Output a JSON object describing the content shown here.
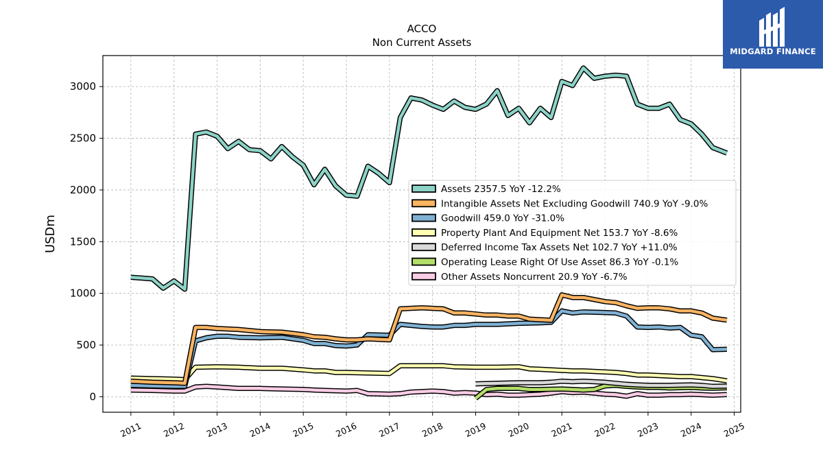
{
  "brand": {
    "name": "MIDGARD FINANCE",
    "color": "#2d5bab"
  },
  "chart_data": {
    "type": "line",
    "title": "ACCO",
    "subtitle": "Non Current  Assets",
    "ylabel": "USDm",
    "xlabel": "",
    "ylim": [
      -150,
      3300
    ],
    "xlim": [
      2010.35,
      2025.15
    ],
    "yticks": [
      0,
      500,
      1000,
      1500,
      2000,
      2500,
      3000
    ],
    "xticks": [
      "2011",
      "2012",
      "2013",
      "2014",
      "2015",
      "2016",
      "2017",
      "2018",
      "2019",
      "2020",
      "2021",
      "2022",
      "2023",
      "2024",
      "2025"
    ],
    "grid": true,
    "legend_position": "center-right",
    "series": [
      {
        "name": "Assets",
        "legend": "Assets  2357.5 YoY -12.2%",
        "color": "#8dd3c7",
        "points": [
          [
            2011.0,
            1155
          ],
          [
            2011.25,
            1148
          ],
          [
            2011.5,
            1140
          ],
          [
            2011.75,
            1050
          ],
          [
            2012.0,
            1120
          ],
          [
            2012.25,
            1040
          ],
          [
            2012.5,
            2540
          ],
          [
            2012.75,
            2560
          ],
          [
            2013.0,
            2520
          ],
          [
            2013.25,
            2400
          ],
          [
            2013.5,
            2470
          ],
          [
            2013.75,
            2390
          ],
          [
            2014.0,
            2380
          ],
          [
            2014.25,
            2300
          ],
          [
            2014.5,
            2420
          ],
          [
            2014.75,
            2320
          ],
          [
            2015.0,
            2240
          ],
          [
            2015.25,
            2050
          ],
          [
            2015.5,
            2200
          ],
          [
            2015.75,
            2040
          ],
          [
            2016.0,
            1950
          ],
          [
            2016.25,
            1940
          ],
          [
            2016.5,
            2230
          ],
          [
            2016.75,
            2160
          ],
          [
            2017.0,
            2070
          ],
          [
            2017.25,
            2700
          ],
          [
            2017.5,
            2890
          ],
          [
            2017.75,
            2870
          ],
          [
            2018.0,
            2820
          ],
          [
            2018.25,
            2780
          ],
          [
            2018.5,
            2860
          ],
          [
            2018.75,
            2800
          ],
          [
            2019.0,
            2780
          ],
          [
            2019.25,
            2830
          ],
          [
            2019.5,
            2960
          ],
          [
            2019.75,
            2720
          ],
          [
            2020.0,
            2790
          ],
          [
            2020.25,
            2650
          ],
          [
            2020.5,
            2790
          ],
          [
            2020.75,
            2700
          ],
          [
            2021.0,
            3050
          ],
          [
            2021.25,
            3010
          ],
          [
            2021.5,
            3180
          ],
          [
            2021.75,
            3080
          ],
          [
            2022.0,
            3100
          ],
          [
            2022.25,
            3110
          ],
          [
            2022.5,
            3100
          ],
          [
            2022.75,
            2830
          ],
          [
            2023.0,
            2790
          ],
          [
            2023.25,
            2790
          ],
          [
            2023.5,
            2830
          ],
          [
            2023.75,
            2680
          ],
          [
            2024.0,
            2640
          ],
          [
            2024.25,
            2540
          ],
          [
            2024.5,
            2410
          ],
          [
            2024.83,
            2357
          ]
        ]
      },
      {
        "name": "Intangible Assets Net Excluding Goodwill",
        "legend": "Intangible Assets Net Excluding Goodwill  740.9 YoY -9.0%",
        "color": "#fdb462",
        "points": [
          [
            2011.0,
            150
          ],
          [
            2011.5,
            140
          ],
          [
            2012.0,
            135
          ],
          [
            2012.25,
            130
          ],
          [
            2012.5,
            670
          ],
          [
            2012.75,
            670
          ],
          [
            2013.0,
            660
          ],
          [
            2013.5,
            650
          ],
          [
            2014.0,
            630
          ],
          [
            2014.5,
            625
          ],
          [
            2015.0,
            600
          ],
          [
            2015.25,
            580
          ],
          [
            2015.5,
            575
          ],
          [
            2015.75,
            560
          ],
          [
            2016.0,
            550
          ],
          [
            2016.25,
            550
          ],
          [
            2016.5,
            560
          ],
          [
            2017.0,
            550
          ],
          [
            2017.25,
            850
          ],
          [
            2017.5,
            855
          ],
          [
            2017.75,
            860
          ],
          [
            2018.0,
            855
          ],
          [
            2018.25,
            850
          ],
          [
            2018.5,
            810
          ],
          [
            2018.75,
            810
          ],
          [
            2019.0,
            800
          ],
          [
            2019.25,
            790
          ],
          [
            2019.5,
            790
          ],
          [
            2019.75,
            780
          ],
          [
            2020.0,
            780
          ],
          [
            2020.25,
            750
          ],
          [
            2020.5,
            745
          ],
          [
            2020.75,
            740
          ],
          [
            2021.0,
            985
          ],
          [
            2021.25,
            960
          ],
          [
            2021.5,
            960
          ],
          [
            2021.75,
            940
          ],
          [
            2022.0,
            920
          ],
          [
            2022.25,
            910
          ],
          [
            2022.5,
            880
          ],
          [
            2022.75,
            855
          ],
          [
            2023.0,
            860
          ],
          [
            2023.25,
            860
          ],
          [
            2023.5,
            850
          ],
          [
            2023.75,
            830
          ],
          [
            2024.0,
            830
          ],
          [
            2024.25,
            810
          ],
          [
            2024.5,
            760
          ],
          [
            2024.83,
            741
          ]
        ]
      },
      {
        "name": "Goodwill",
        "legend": "Goodwill  459.0 YoY -31.0%",
        "color": "#80b1d3",
        "points": [
          [
            2011.0,
            110
          ],
          [
            2011.5,
            105
          ],
          [
            2012.0,
            100
          ],
          [
            2012.25,
            100
          ],
          [
            2012.5,
            540
          ],
          [
            2012.75,
            570
          ],
          [
            2013.0,
            585
          ],
          [
            2013.25,
            585
          ],
          [
            2013.5,
            575
          ],
          [
            2014.0,
            570
          ],
          [
            2014.5,
            575
          ],
          [
            2015.0,
            545
          ],
          [
            2015.25,
            515
          ],
          [
            2015.5,
            515
          ],
          [
            2015.75,
            495
          ],
          [
            2016.0,
            490
          ],
          [
            2016.25,
            500
          ],
          [
            2016.5,
            600
          ],
          [
            2017.0,
            595
          ],
          [
            2017.25,
            700
          ],
          [
            2017.5,
            690
          ],
          [
            2017.75,
            680
          ],
          [
            2018.0,
            675
          ],
          [
            2018.25,
            675
          ],
          [
            2018.5,
            690
          ],
          [
            2018.75,
            690
          ],
          [
            2019.0,
            700
          ],
          [
            2019.5,
            700
          ],
          [
            2020.0,
            710
          ],
          [
            2020.5,
            715
          ],
          [
            2020.75,
            720
          ],
          [
            2021.0,
            830
          ],
          [
            2021.25,
            810
          ],
          [
            2021.5,
            820
          ],
          [
            2022.0,
            815
          ],
          [
            2022.25,
            810
          ],
          [
            2022.5,
            780
          ],
          [
            2022.75,
            675
          ],
          [
            2023.0,
            670
          ],
          [
            2023.25,
            675
          ],
          [
            2023.5,
            665
          ],
          [
            2023.75,
            670
          ],
          [
            2024.0,
            595
          ],
          [
            2024.25,
            580
          ],
          [
            2024.5,
            455
          ],
          [
            2024.83,
            459
          ]
        ]
      },
      {
        "name": "Property Plant And Equipment Net",
        "legend": "Property Plant And Equipment Net  153.7 YoY -8.6%",
        "color": "#ffffb3",
        "points": [
          [
            2011.0,
            180
          ],
          [
            2011.5,
            175
          ],
          [
            2012.0,
            170
          ],
          [
            2012.25,
            165
          ],
          [
            2012.5,
            285
          ],
          [
            2013.0,
            290
          ],
          [
            2013.5,
            285
          ],
          [
            2014.0,
            275
          ],
          [
            2014.5,
            275
          ],
          [
            2015.0,
            260
          ],
          [
            2015.25,
            250
          ],
          [
            2015.5,
            250
          ],
          [
            2015.75,
            235
          ],
          [
            2016.0,
            235
          ],
          [
            2016.5,
            230
          ],
          [
            2017.0,
            225
          ],
          [
            2017.25,
            300
          ],
          [
            2017.5,
            300
          ],
          [
            2018.0,
            300
          ],
          [
            2018.25,
            300
          ],
          [
            2018.5,
            290
          ],
          [
            2019.0,
            285
          ],
          [
            2019.5,
            285
          ],
          [
            2020.0,
            290
          ],
          [
            2020.25,
            270
          ],
          [
            2020.5,
            265
          ],
          [
            2021.0,
            255
          ],
          [
            2021.25,
            250
          ],
          [
            2021.5,
            250
          ],
          [
            2022.0,
            240
          ],
          [
            2022.25,
            235
          ],
          [
            2022.5,
            225
          ],
          [
            2022.75,
            210
          ],
          [
            2023.0,
            210
          ],
          [
            2023.5,
            200
          ],
          [
            2023.75,
            195
          ],
          [
            2024.0,
            195
          ],
          [
            2024.25,
            185
          ],
          [
            2024.5,
            175
          ],
          [
            2024.83,
            154
          ]
        ]
      },
      {
        "name": "Deferred Income Tax Assets Net",
        "legend": "Deferred Income Tax Assets Net  102.7 YoY +11.0%",
        "color": "#d9d9d9",
        "points": [
          [
            2019.0,
            125
          ],
          [
            2019.5,
            130
          ],
          [
            2020.0,
            135
          ],
          [
            2020.5,
            135
          ],
          [
            2020.75,
            140
          ],
          [
            2021.0,
            150
          ],
          [
            2021.25,
            145
          ],
          [
            2021.5,
            150
          ],
          [
            2022.0,
            140
          ],
          [
            2022.25,
            130
          ],
          [
            2022.5,
            120
          ],
          [
            2022.75,
            115
          ],
          [
            2023.0,
            110
          ],
          [
            2023.5,
            110
          ],
          [
            2024.0,
            115
          ],
          [
            2024.25,
            110
          ],
          [
            2024.5,
            100
          ],
          [
            2024.83,
            103
          ]
        ]
      },
      {
        "name": "Operating Lease Right Of Use Asset",
        "legend": "Operating Lease Right Of Use Asset  86.3 YoY -0.1%",
        "color": "#b3de69",
        "points": [
          [
            2019.0,
            -15
          ],
          [
            2019.25,
            70
          ],
          [
            2019.5,
            80
          ],
          [
            2020.0,
            80
          ],
          [
            2020.25,
            70
          ],
          [
            2020.5,
            70
          ],
          [
            2021.0,
            75
          ],
          [
            2021.25,
            70
          ],
          [
            2021.5,
            65
          ],
          [
            2021.75,
            70
          ],
          [
            2022.0,
            105
          ],
          [
            2022.25,
            110
          ],
          [
            2022.5,
            100
          ],
          [
            2022.75,
            95
          ],
          [
            2023.0,
            90
          ],
          [
            2023.25,
            90
          ],
          [
            2023.5,
            85
          ],
          [
            2024.0,
            90
          ],
          [
            2024.25,
            85
          ],
          [
            2024.5,
            82
          ],
          [
            2024.83,
            86
          ]
        ]
      },
      {
        "name": "Other Assets Noncurrent",
        "legend": "Other Assets Noncurrent  20.9 YoY -6.7%",
        "color": "#fccde5",
        "points": [
          [
            2011.0,
            65
          ],
          [
            2011.5,
            60
          ],
          [
            2012.0,
            55
          ],
          [
            2012.25,
            55
          ],
          [
            2012.5,
            95
          ],
          [
            2012.75,
            100
          ],
          [
            2013.0,
            95
          ],
          [
            2013.5,
            80
          ],
          [
            2014.0,
            80
          ],
          [
            2014.5,
            75
          ],
          [
            2015.0,
            70
          ],
          [
            2015.25,
            65
          ],
          [
            2015.5,
            60
          ],
          [
            2016.0,
            55
          ],
          [
            2016.25,
            60
          ],
          [
            2016.5,
            30
          ],
          [
            2017.0,
            25
          ],
          [
            2017.25,
            30
          ],
          [
            2017.5,
            45
          ],
          [
            2018.0,
            55
          ],
          [
            2018.25,
            50
          ],
          [
            2018.5,
            35
          ],
          [
            2018.75,
            40
          ],
          [
            2019.0,
            35
          ],
          [
            2019.25,
            20
          ],
          [
            2019.5,
            25
          ],
          [
            2019.75,
            15
          ],
          [
            2020.0,
            15
          ],
          [
            2020.25,
            20
          ],
          [
            2020.5,
            25
          ],
          [
            2020.75,
            35
          ],
          [
            2021.0,
            50
          ],
          [
            2021.25,
            40
          ],
          [
            2021.5,
            45
          ],
          [
            2021.75,
            35
          ],
          [
            2022.0,
            25
          ],
          [
            2022.25,
            20
          ],
          [
            2022.5,
            5
          ],
          [
            2022.75,
            30
          ],
          [
            2023.0,
            15
          ],
          [
            2023.25,
            15
          ],
          [
            2023.5,
            20
          ],
          [
            2023.75,
            20
          ],
          [
            2024.0,
            25
          ],
          [
            2024.25,
            20
          ],
          [
            2024.5,
            15
          ],
          [
            2024.83,
            21
          ]
        ]
      }
    ]
  }
}
